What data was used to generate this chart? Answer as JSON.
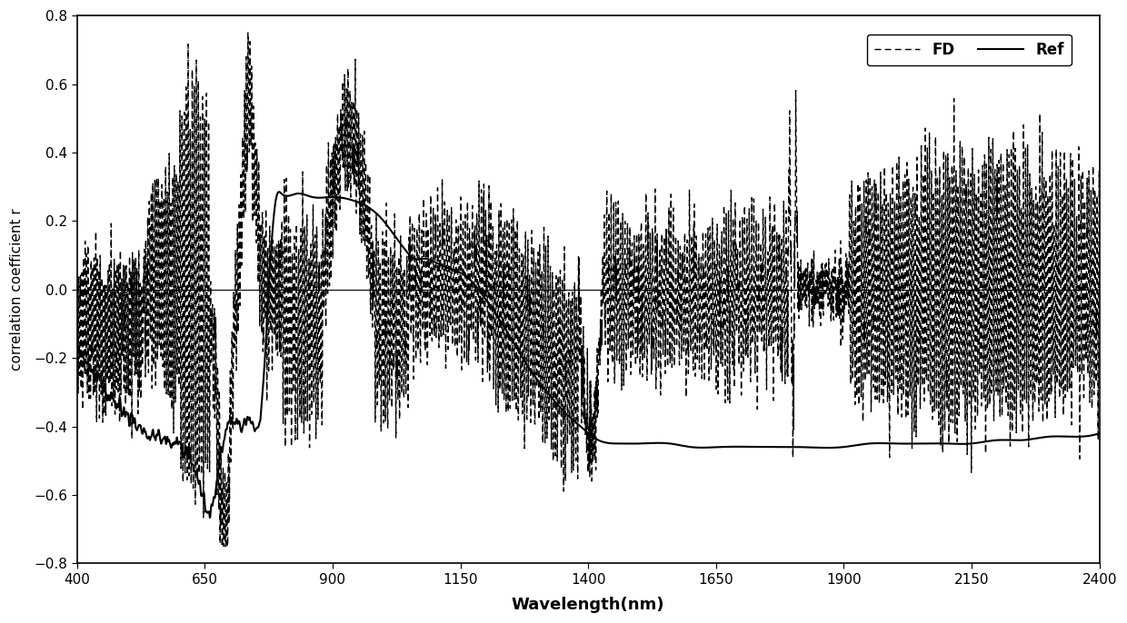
{
  "title": "",
  "xlabel": "Wavelength(nm)",
  "ylabel": "correlation coefficient r",
  "xlim": [
    400,
    2400
  ],
  "ylim": [
    -0.8,
    0.8
  ],
  "xticks": [
    400,
    650,
    900,
    1150,
    1400,
    1650,
    1900,
    2150,
    2400
  ],
  "yticks": [
    -0.8,
    -0.6,
    -0.4,
    -0.2,
    0,
    0.2,
    0.4,
    0.6,
    0.8
  ],
  "legend_labels": [
    "FD",
    "Ref"
  ],
  "figsize": [
    12.4,
    6.86
  ],
  "dpi": 100
}
